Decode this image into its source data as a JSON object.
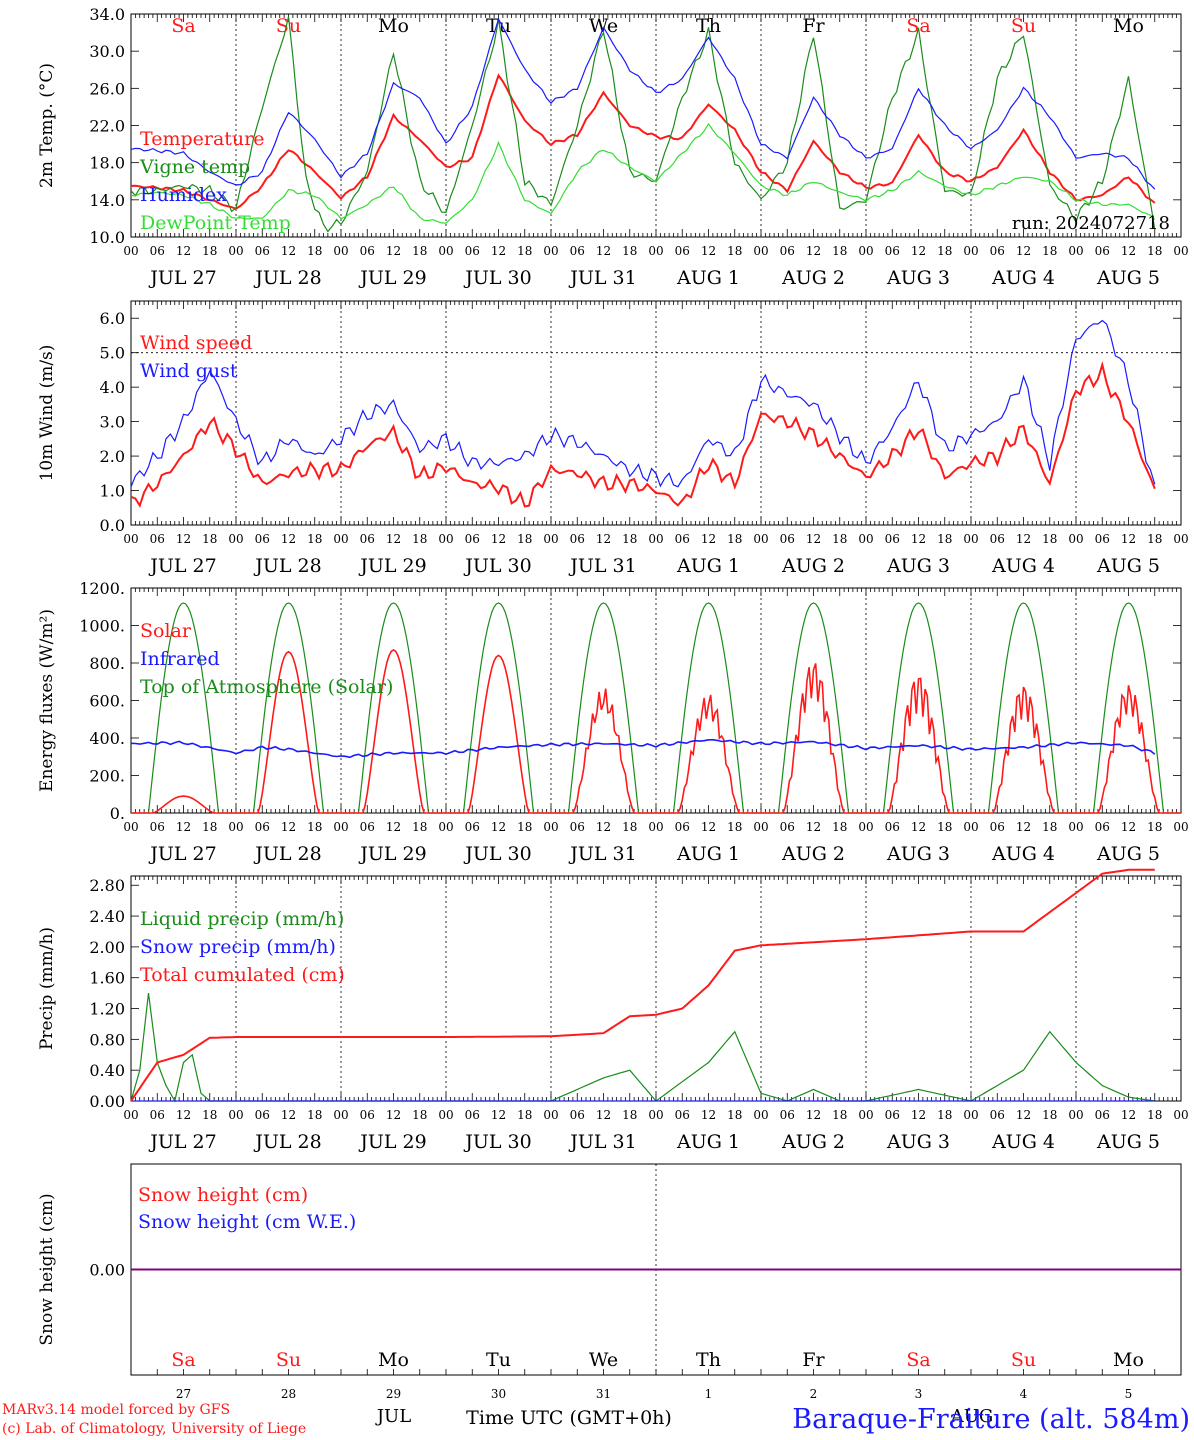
{
  "colors": {
    "red": "#ff1a1a",
    "green": "#1a8c1a",
    "blue": "#1a1aff",
    "lightgreen": "#33dd33",
    "purple": "#800080"
  },
  "dates": [
    "JUL 27",
    "JUL 28",
    "JUL 29",
    "JUL 30",
    "JUL 31",
    "AUG  1",
    "AUG  2",
    "AUG  3",
    "AUG  4",
    "AUG  5"
  ],
  "hour_labels": [
    "00",
    "06",
    "12",
    "18"
  ],
  "weekdays": [
    "Sa",
    "Su",
    "Mo",
    "Tu",
    "We",
    "Th",
    "Fr",
    "Sa",
    "Su",
    "Mo"
  ],
  "weekday_colors": [
    "red",
    "red",
    "black",
    "black",
    "black",
    "black",
    "black",
    "red",
    "red",
    "black"
  ],
  "bottom_day_numbers": [
    "27",
    "28",
    "29",
    "30",
    "31",
    "1",
    "2",
    "3",
    "4",
    "5"
  ],
  "bottom": {
    "month_jul": "JUL",
    "month_aug": "AUG",
    "time_label": "Time UTC (GMT+0h)",
    "credit1": "MARv3.14 model forced by GFS",
    "credit2": "(c) Lab. of Climatology, University of Liege",
    "station": "Baraque-Fraiture (alt. 584m)"
  },
  "chart_data": [
    {
      "type": "line",
      "ylabel": "2m Temp. (°C)",
      "ylim": [
        10.0,
        34.0
      ],
      "yticks": [
        "10.0",
        "14.0",
        "18.0",
        "22.0",
        "26.0",
        "30.0",
        "34.0"
      ],
      "run_label": "run: 2024072718",
      "x_unit": "hours since 2024-07-27 00 UTC",
      "series": [
        {
          "name": "Temperature",
          "color": "red",
          "x": [
            0,
            6,
            12,
            18,
            24,
            30,
            36,
            42,
            48,
            54,
            60,
            66,
            72,
            78,
            84,
            90,
            96,
            102,
            108,
            114,
            120,
            126,
            132,
            138,
            144,
            150,
            156,
            162,
            168,
            174,
            180,
            186,
            192,
            198,
            204,
            210,
            216,
            222,
            228,
            234
          ],
          "values": [
            15.5,
            15.3,
            15.0,
            14.0,
            13.0,
            15.5,
            19.5,
            17.0,
            14.2,
            16.5,
            23.0,
            20.5,
            17.5,
            18.5,
            27.5,
            22.5,
            20.0,
            21.0,
            25.5,
            22.0,
            20.8,
            20.6,
            24.3,
            21.5,
            17.0,
            15.0,
            20.3,
            17.0,
            15.3,
            15.8,
            21.0,
            17.0,
            16.0,
            17.5,
            21.5,
            17.0,
            14.0,
            14.5,
            16.5,
            13.5
          ]
        },
        {
          "name": "Vigne temp",
          "color": "green",
          "x": [
            0,
            6,
            12,
            18,
            24,
            30,
            36,
            40,
            44,
            48,
            54,
            60,
            66,
            72,
            78,
            84,
            90,
            96,
            102,
            108,
            114,
            120,
            126,
            132,
            138,
            144,
            150,
            156,
            162,
            168,
            174,
            180,
            186,
            192,
            198,
            204,
            210,
            216,
            222,
            228,
            234
          ],
          "values": [
            15.0,
            15.0,
            15.5,
            15.0,
            13.0,
            24.0,
            33.5,
            16.0,
            11.0,
            11.5,
            17.0,
            30.0,
            16.0,
            12.5,
            22.0,
            33.0,
            16.0,
            13.5,
            22.0,
            32.5,
            17.0,
            16.0,
            25.0,
            32.0,
            18.0,
            14.0,
            18.0,
            32.0,
            13.0,
            14.0,
            25.0,
            32.0,
            15.0,
            14.5,
            27.0,
            32.0,
            15.5,
            12.0,
            16.0,
            27.0,
            11.0
          ]
        },
        {
          "name": "Humidex",
          "color": "blue",
          "x": [
            0,
            6,
            12,
            18,
            24,
            30,
            36,
            42,
            48,
            54,
            60,
            66,
            72,
            78,
            84,
            90,
            96,
            102,
            108,
            114,
            120,
            126,
            132,
            138,
            144,
            150,
            156,
            162,
            168,
            174,
            180,
            186,
            192,
            198,
            204,
            210,
            216,
            222,
            228,
            234
          ],
          "values": [
            19.5,
            19.3,
            19.0,
            17.0,
            15.5,
            17.0,
            23.5,
            20.5,
            16.5,
            19.0,
            26.5,
            25.0,
            20.0,
            24.0,
            33.5,
            28.0,
            24.5,
            26.0,
            32.5,
            28.0,
            25.5,
            27.0,
            31.5,
            27.0,
            20.0,
            18.5,
            25.0,
            21.0,
            18.5,
            19.5,
            26.0,
            22.0,
            19.5,
            21.5,
            26.0,
            23.0,
            18.5,
            19.0,
            18.5,
            15.0
          ]
        },
        {
          "name": "DewPoint Temp",
          "color": "lightgreen",
          "x": [
            0,
            6,
            12,
            18,
            24,
            30,
            36,
            42,
            48,
            54,
            60,
            66,
            72,
            78,
            84,
            90,
            96,
            102,
            108,
            114,
            120,
            126,
            132,
            138,
            144,
            150,
            156,
            162,
            168,
            174,
            180,
            186,
            192,
            198,
            204,
            210,
            216,
            222,
            228,
            234
          ],
          "values": [
            14.5,
            14.8,
            14.5,
            13.5,
            12.0,
            12.0,
            15.0,
            14.5,
            12.0,
            13.5,
            15.5,
            12.0,
            11.5,
            14.0,
            20.0,
            14.0,
            12.5,
            17.0,
            19.5,
            17.5,
            16.0,
            19.0,
            22.0,
            19.0,
            15.5,
            14.5,
            16.0,
            14.8,
            14.0,
            15.0,
            17.0,
            15.5,
            14.5,
            15.5,
            16.5,
            16.0,
            14.0,
            13.5,
            13.5,
            12.0
          ]
        }
      ]
    },
    {
      "type": "line",
      "ylabel": "10m Wind (m/s)",
      "ylim": [
        0.0,
        6.5
      ],
      "yticks": [
        "0.0",
        "1.0",
        "2.0",
        "3.0",
        "4.0",
        "5.0",
        "6.0"
      ],
      "reference_line": 5.0,
      "series": [
        {
          "name": "Wind speed",
          "color": "red",
          "x": [
            0,
            6,
            12,
            18,
            24,
            30,
            36,
            42,
            48,
            54,
            60,
            66,
            72,
            78,
            84,
            90,
            96,
            102,
            108,
            114,
            120,
            126,
            132,
            138,
            144,
            150,
            156,
            162,
            168,
            174,
            180,
            186,
            192,
            198,
            204,
            210,
            216,
            222,
            228,
            234
          ],
          "values": [
            0.6,
            1.2,
            2.0,
            3.0,
            2.2,
            1.2,
            1.5,
            1.6,
            1.6,
            2.3,
            2.7,
            1.4,
            1.7,
            1.2,
            1.1,
            0.6,
            1.6,
            1.5,
            1.2,
            1.2,
            1.0,
            0.6,
            1.8,
            1.2,
            3.2,
            3.0,
            2.6,
            2.0,
            1.4,
            2.0,
            2.8,
            1.4,
            1.8,
            2.0,
            2.8,
            1.2,
            3.9,
            4.4,
            3.0,
            1.0
          ]
        },
        {
          "name": "Wind gust",
          "color": "blue",
          "x": [
            0,
            6,
            12,
            18,
            24,
            30,
            36,
            42,
            48,
            54,
            60,
            66,
            72,
            78,
            84,
            90,
            96,
            102,
            108,
            114,
            120,
            126,
            132,
            138,
            144,
            150,
            156,
            162,
            168,
            174,
            180,
            186,
            192,
            198,
            204,
            210,
            216,
            222,
            228,
            234
          ],
          "values": [
            1.2,
            2.0,
            3.0,
            4.5,
            3.0,
            1.8,
            2.5,
            2.0,
            2.5,
            3.2,
            3.5,
            2.2,
            2.5,
            1.8,
            1.8,
            2.0,
            2.6,
            2.4,
            2.0,
            1.6,
            1.4,
            1.2,
            2.5,
            2.0,
            4.2,
            3.8,
            3.5,
            2.6,
            1.8,
            2.8,
            4.2,
            2.2,
            2.6,
            3.0,
            4.2,
            1.8,
            5.4,
            6.0,
            4.2,
            1.0
          ]
        }
      ]
    },
    {
      "type": "line",
      "ylabel": "Energy fluxes (W/m²)",
      "ylim": [
        0,
        1200
      ],
      "yticks": [
        "0.",
        "200.",
        "400.",
        "600.",
        "800.",
        "1000.",
        "1200."
      ],
      "series": [
        {
          "name": "Solar",
          "color": "red",
          "peaks": [
            90,
            860,
            870,
            840,
            670,
            640,
            820,
            750,
            690,
            690
          ]
        },
        {
          "name": "Infrared",
          "color": "blue",
          "x": [
            0,
            12,
            24,
            30,
            36,
            48,
            60,
            72,
            84,
            96,
            108,
            120,
            132,
            144,
            156,
            168,
            180,
            192,
            204,
            216,
            228,
            234
          ],
          "values": [
            370,
            375,
            320,
            350,
            340,
            300,
            320,
            320,
            350,
            365,
            370,
            360,
            390,
            370,
            380,
            345,
            360,
            340,
            350,
            375,
            360,
            320
          ]
        },
        {
          "name": "Top of Atmosphere (Solar)",
          "color": "green",
          "peak": 1120
        }
      ]
    },
    {
      "type": "line",
      "ylabel": "Precip (mm/h)",
      "ylim": [
        0.0,
        2.92
      ],
      "yticks": [
        "0.00",
        "0.40",
        "0.80",
        "1.20",
        "1.60",
        "2.00",
        "2.40",
        "2.80"
      ],
      "series": [
        {
          "name": "Liquid precip (mm/h)",
          "color": "green",
          "x": [
            0,
            2,
            4,
            6,
            8,
            10,
            12,
            14,
            16,
            18,
            24,
            36,
            48,
            96,
            100,
            108,
            114,
            120,
            132,
            138,
            144,
            150,
            156,
            162,
            168,
            180,
            192,
            204,
            210,
            216,
            222,
            228,
            234
          ],
          "values": [
            0,
            0.4,
            1.4,
            0.5,
            0.2,
            0,
            0.5,
            0.6,
            0.1,
            0,
            0,
            0,
            0,
            0,
            0.1,
            0.3,
            0.4,
            0,
            0.5,
            0.9,
            0.1,
            0,
            0.15,
            0,
            0,
            0.15,
            0,
            0.4,
            0.9,
            0.5,
            0.2,
            0.05,
            0
          ]
        },
        {
          "name": "Snow precip (mm/h)",
          "color": "blue",
          "x": [
            0,
            234
          ],
          "values": [
            0,
            0
          ]
        },
        {
          "name": "Total cumulated (cm)",
          "color": "red",
          "x": [
            0,
            6,
            12,
            18,
            24,
            48,
            72,
            96,
            108,
            114,
            120,
            126,
            132,
            138,
            144,
            156,
            168,
            180,
            192,
            204,
            210,
            216,
            222,
            228,
            234
          ],
          "values": [
            0,
            0.5,
            0.6,
            0.82,
            0.83,
            0.83,
            0.83,
            0.84,
            0.88,
            1.1,
            1.12,
            1.2,
            1.5,
            1.95,
            2.02,
            2.06,
            2.1,
            2.15,
            2.2,
            2.2,
            2.45,
            2.7,
            2.95,
            3.0,
            3.0
          ]
        }
      ]
    },
    {
      "type": "line",
      "ylabel": "Snow height (cm)",
      "ylim": [
        -1,
        1
      ],
      "yticks": [
        "0.00"
      ],
      "series": [
        {
          "name": "Snow height (cm)",
          "color": "red",
          "x": [
            0,
            234
          ],
          "values": [
            0,
            0
          ]
        },
        {
          "name": "Snow height (cm W.E.)",
          "color": "blue",
          "x": [
            0,
            234
          ],
          "values": [
            0,
            0
          ]
        }
      ]
    }
  ]
}
